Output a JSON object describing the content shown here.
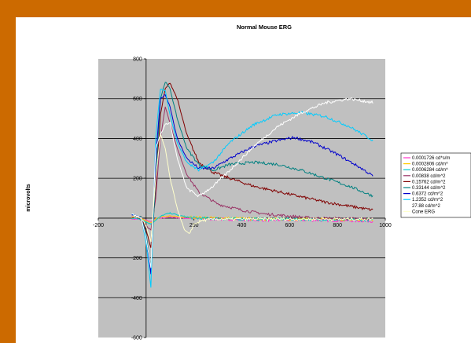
{
  "chart_data": {
    "type": "line",
    "title": "Normal Mouse ERG",
    "xlabel": "",
    "ylabel": "microvolts",
    "xlim": [
      -200,
      1000
    ],
    "ylim": [
      -600,
      800
    ],
    "x_ticks": [
      "-200",
      "200",
      "400",
      "600",
      "800",
      "1000"
    ],
    "y_ticks": [
      "800",
      "600",
      "400",
      "200",
      "0",
      "-200",
      "-400",
      "-600"
    ],
    "grid": "horizontal",
    "legend_position": "right",
    "plot_background": "#c0c0c0",
    "series": [
      {
        "name": "0.0001726 cd*s/m",
        "color": "#ff33cc",
        "points": [
          [
            -60,
            -5
          ],
          [
            -20,
            -5
          ],
          [
            0,
            -10
          ],
          [
            20,
            -20
          ],
          [
            40,
            -5
          ],
          [
            60,
            0
          ],
          [
            100,
            5
          ],
          [
            150,
            0
          ],
          [
            300,
            -5
          ],
          [
            500,
            -10
          ],
          [
            700,
            -10
          ],
          [
            950,
            -15
          ]
        ]
      },
      {
        "name": "0.0002806 cd/m^",
        "color": "#ffcc00",
        "points": [
          [
            -60,
            5
          ],
          [
            -20,
            0
          ],
          [
            0,
            -15
          ],
          [
            20,
            -25
          ],
          [
            40,
            -5
          ],
          [
            60,
            5
          ],
          [
            100,
            10
          ],
          [
            150,
            5
          ],
          [
            300,
            0
          ],
          [
            500,
            -5
          ],
          [
            700,
            -5
          ],
          [
            950,
            -10
          ]
        ]
      },
      {
        "name": "0.0006284 cd/m^",
        "color": "#00cccc",
        "points": [
          [
            -60,
            0
          ],
          [
            -20,
            -5
          ],
          [
            0,
            -20
          ],
          [
            20,
            -30
          ],
          [
            40,
            -10
          ],
          [
            70,
            15
          ],
          [
            100,
            25
          ],
          [
            150,
            10
          ],
          [
            200,
            0
          ],
          [
            400,
            -5
          ],
          [
            600,
            -5
          ],
          [
            950,
            -10
          ]
        ]
      },
      {
        "name": "0.00838 cd/m^2",
        "color": "#993366",
        "points": [
          [
            -60,
            10
          ],
          [
            -20,
            0
          ],
          [
            0,
            -40
          ],
          [
            20,
            -60
          ],
          [
            40,
            100
          ],
          [
            60,
            400
          ],
          [
            80,
            560
          ],
          [
            100,
            480
          ],
          [
            130,
            350
          ],
          [
            170,
            220
          ],
          [
            220,
            130
          ],
          [
            300,
            70
          ],
          [
            400,
            40
          ],
          [
            500,
            20
          ],
          [
            700,
            0
          ],
          [
            950,
            -5
          ]
        ]
      },
      {
        "name": "0.15762 cd/m^2",
        "color": "#800000",
        "points": [
          [
            -60,
            10
          ],
          [
            -20,
            0
          ],
          [
            0,
            -60
          ],
          [
            20,
            -150
          ],
          [
            40,
            150
          ],
          [
            60,
            520
          ],
          [
            80,
            650
          ],
          [
            100,
            680
          ],
          [
            130,
            600
          ],
          [
            170,
            420
          ],
          [
            220,
            280
          ],
          [
            280,
            230
          ],
          [
            350,
            200
          ],
          [
            450,
            160
          ],
          [
            600,
            120
          ],
          [
            750,
            80
          ],
          [
            950,
            40
          ]
        ]
      },
      {
        "name": "0.33144 cd/m^2",
        "color": "#008080",
        "points": [
          [
            -60,
            20
          ],
          [
            -20,
            0
          ],
          [
            0,
            -80
          ],
          [
            20,
            -250
          ],
          [
            40,
            200
          ],
          [
            60,
            600
          ],
          [
            80,
            685
          ],
          [
            100,
            650
          ],
          [
            130,
            500
          ],
          [
            170,
            350
          ],
          [
            220,
            270
          ],
          [
            280,
            240
          ],
          [
            350,
            270
          ],
          [
            450,
            280
          ],
          [
            550,
            270
          ],
          [
            650,
            240
          ],
          [
            750,
            200
          ],
          [
            850,
            160
          ],
          [
            950,
            110
          ]
        ]
      },
      {
        "name": "0.6372 cd/m^2",
        "color": "#0000cc",
        "points": [
          [
            -60,
            20
          ],
          [
            -20,
            0
          ],
          [
            0,
            -100
          ],
          [
            20,
            -280
          ],
          [
            40,
            300
          ],
          [
            60,
            600
          ],
          [
            80,
            620
          ],
          [
            100,
            560
          ],
          [
            130,
            400
          ],
          [
            170,
            300
          ],
          [
            220,
            250
          ],
          [
            280,
            250
          ],
          [
            350,
            300
          ],
          [
            450,
            360
          ],
          [
            550,
            390
          ],
          [
            620,
            405
          ],
          [
            700,
            380
          ],
          [
            800,
            320
          ],
          [
            900,
            250
          ],
          [
            950,
            210
          ]
        ]
      },
      {
        "name": "1.2352 cd/m^2",
        "color": "#00ccff",
        "points": [
          [
            -60,
            20
          ],
          [
            -20,
            0
          ],
          [
            0,
            -120
          ],
          [
            20,
            -350
          ],
          [
            40,
            400
          ],
          [
            60,
            650
          ],
          [
            80,
            640
          ],
          [
            100,
            520
          ],
          [
            130,
            380
          ],
          [
            170,
            280
          ],
          [
            220,
            240
          ],
          [
            280,
            280
          ],
          [
            350,
            380
          ],
          [
            450,
            470
          ],
          [
            550,
            520
          ],
          [
            650,
            530
          ],
          [
            750,
            510
          ],
          [
            850,
            460
          ],
          [
            950,
            390
          ]
        ]
      },
      {
        "name": "27.88 cd/m^2",
        "color": "#ffffff",
        "points": [
          [
            -60,
            20
          ],
          [
            -20,
            0
          ],
          [
            0,
            -100
          ],
          [
            20,
            -250
          ],
          [
            40,
            350
          ],
          [
            60,
            420
          ],
          [
            80,
            470
          ],
          [
            100,
            480
          ],
          [
            130,
            300
          ],
          [
            170,
            150
          ],
          [
            220,
            110
          ],
          [
            280,
            160
          ],
          [
            350,
            240
          ],
          [
            450,
            360
          ],
          [
            550,
            460
          ],
          [
            650,
            530
          ],
          [
            750,
            580
          ],
          [
            850,
            600
          ],
          [
            950,
            580
          ]
        ]
      },
      {
        "name": "Cone ERG",
        "color": "#ffffcc",
        "points": [
          [
            -60,
            10
          ],
          [
            -20,
            0
          ],
          [
            0,
            -40
          ],
          [
            20,
            -120
          ],
          [
            40,
            200
          ],
          [
            60,
            420
          ],
          [
            80,
            350
          ],
          [
            100,
            200
          ],
          [
            130,
            50
          ],
          [
            160,
            -60
          ],
          [
            180,
            -80
          ],
          [
            200,
            -30
          ],
          [
            240,
            -10
          ],
          [
            300,
            -5
          ],
          [
            500,
            -5
          ],
          [
            950,
            -5
          ]
        ]
      }
    ]
  }
}
